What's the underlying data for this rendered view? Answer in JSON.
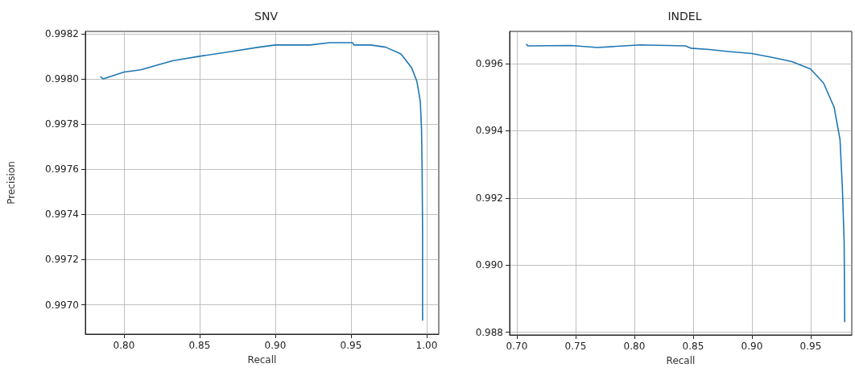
{
  "chart_data": [
    {
      "type": "line",
      "title": "SNV",
      "xlabel": "Recall",
      "ylabel": "Precision",
      "grid": true,
      "x": [
        0.7844,
        0.7863,
        0.8,
        0.811,
        0.832,
        0.85,
        0.87,
        0.889,
        0.9,
        0.923,
        0.936,
        0.951,
        0.952,
        0.963,
        0.973,
        0.983,
        0.99,
        0.9935,
        0.9958,
        0.9966,
        0.997,
        0.9973,
        0.9973
      ],
      "series": [
        {
          "color": "#1f77b4",
          "values": [
            0.99801,
            0.998,
            0.99803,
            0.99804,
            0.99808,
            0.9981,
            0.99812,
            0.99814,
            0.99815,
            0.99815,
            0.99816,
            0.99816,
            0.99815,
            0.99815,
            0.99814,
            0.99811,
            0.99805,
            0.99799,
            0.9979,
            0.99778,
            0.99759,
            0.99733,
            0.99693
          ]
        }
      ],
      "xlim": [
        0.7745,
        1.008
      ],
      "ylim": [
        0.99687,
        0.99821
      ],
      "xticks": [
        {
          "value": 0.8,
          "label": "0.80"
        },
        {
          "value": 0.85,
          "label": "0.85"
        },
        {
          "value": 0.9,
          "label": "0.90"
        },
        {
          "value": 0.95,
          "label": "0.95"
        },
        {
          "value": 1.0,
          "label": "1.00"
        }
      ],
      "yticks": [
        {
          "value": 0.997,
          "label": "0.9970"
        },
        {
          "value": 0.9972,
          "label": "0.9972"
        },
        {
          "value": 0.9974,
          "label": "0.9974"
        },
        {
          "value": 0.9976,
          "label": "0.9976"
        },
        {
          "value": 0.9978,
          "label": "0.9978"
        },
        {
          "value": 0.998,
          "label": "0.9980"
        },
        {
          "value": 0.9982,
          "label": "0.9982"
        }
      ]
    },
    {
      "type": "line",
      "title": "INDEL",
      "xlabel": "Recall",
      "grid": true,
      "x": [
        0.708,
        0.7095,
        0.746,
        0.7687,
        0.805,
        0.8435,
        0.848,
        0.864,
        0.88,
        0.9,
        0.918,
        0.934,
        0.95,
        0.961,
        0.97,
        0.975,
        0.977,
        0.9785,
        0.979
      ],
      "series": [
        {
          "color": "#1f77b4",
          "values": [
            0.99658,
            0.99653,
            0.99654,
            0.99648,
            0.99656,
            0.99653,
            0.99646,
            0.99642,
            0.99636,
            0.9963,
            0.99618,
            0.99606,
            0.99584,
            0.99542,
            0.9947,
            0.99374,
            0.9923,
            0.9907,
            0.9883
          ]
        }
      ],
      "xlim": [
        0.6939,
        0.985
      ],
      "ylim": [
        0.98792,
        0.99696
      ],
      "xticks": [
        {
          "value": 0.7,
          "label": "0.70"
        },
        {
          "value": 0.75,
          "label": "0.75"
        },
        {
          "value": 0.8,
          "label": "0.80"
        },
        {
          "value": 0.85,
          "label": "0.85"
        },
        {
          "value": 0.9,
          "label": "0.90"
        },
        {
          "value": 0.95,
          "label": "0.95"
        }
      ],
      "yticks": [
        {
          "value": 0.988,
          "label": "0.988"
        },
        {
          "value": 0.99,
          "label": "0.990"
        },
        {
          "value": 0.992,
          "label": "0.992"
        },
        {
          "value": 0.994,
          "label": "0.994"
        },
        {
          "value": 0.996,
          "label": "0.996"
        }
      ]
    }
  ]
}
